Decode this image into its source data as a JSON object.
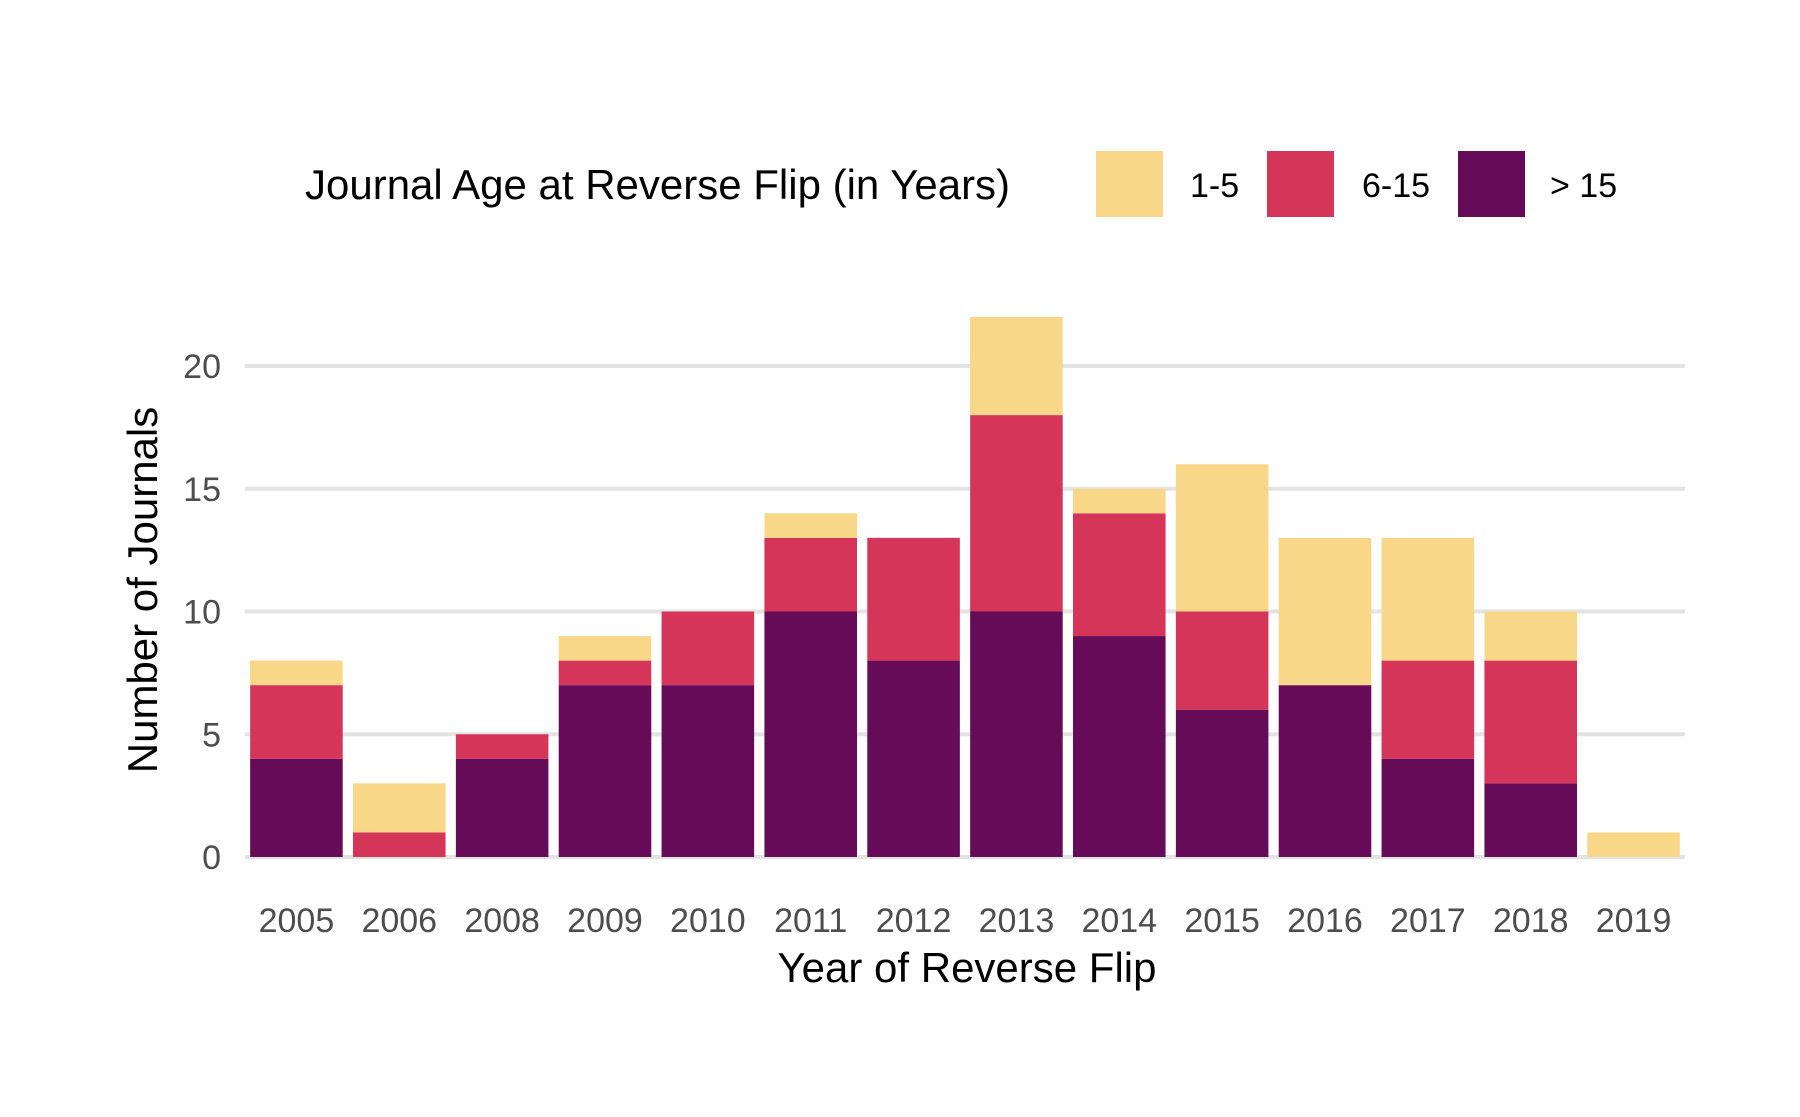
{
  "chart_data": {
    "type": "bar",
    "stacked": true,
    "categories": [
      "2005",
      "2006",
      "2008",
      "2009",
      "2010",
      "2011",
      "2012",
      "2013",
      "2014",
      "2015",
      "2016",
      "2017",
      "2018",
      "2019"
    ],
    "series": [
      {
        "name": "> 15",
        "color": "#660b58",
        "values": [
          4,
          0,
          4,
          7,
          7,
          10,
          8,
          10,
          9,
          6,
          7,
          4,
          3,
          0
        ]
      },
      {
        "name": "6-15",
        "color": "#d6355a",
        "values": [
          3,
          1,
          1,
          1,
          3,
          3,
          5,
          8,
          5,
          4,
          0,
          4,
          5,
          0
        ]
      },
      {
        "name": "1-5",
        "color": "#f8d789",
        "values": [
          1,
          2,
          0,
          1,
          0,
          1,
          0,
          4,
          1,
          6,
          6,
          5,
          2,
          1
        ]
      }
    ],
    "xlabel": "Year of Reverse Flip",
    "ylabel": "Number of Journals",
    "ylim": [
      0,
      22
    ],
    "yticks": [
      "0",
      "5",
      "10",
      "15",
      "20"
    ],
    "grid": true,
    "legend": {
      "title": "Journal Age at Reverse Flip (in Years)",
      "position": "top",
      "entries": [
        "1-5",
        "6-15",
        "> 15"
      ]
    }
  }
}
